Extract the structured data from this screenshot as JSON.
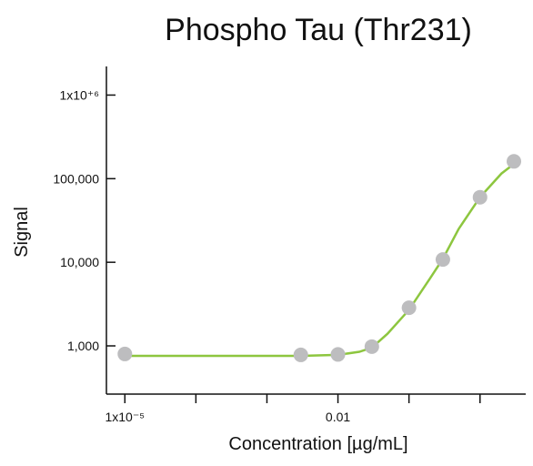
{
  "chart_data": {
    "type": "scatter",
    "title": "Phospho Tau (Thr231)",
    "xlabel": "Concentration [µg/mL]",
    "ylabel": "Signal",
    "xscale": "log",
    "yscale": "log",
    "xlim": [
      5.5e-06,
      4.4
    ],
    "ylim": [
      265,
      2200000
    ],
    "xticks": [
      {
        "value": 1e-05,
        "label": "1x10⁻⁵"
      },
      0.01
    ],
    "x_minor_ticks": [
      0.0001,
      0.001,
      0.1,
      1
    ],
    "yticks": [
      {
        "value": 1000,
        "label": "1,000"
      },
      {
        "value": 10000,
        "label": "10,000"
      },
      {
        "value": 100000,
        "label": "100,000"
      },
      {
        "value": 1000000,
        "label": "1x10⁺⁶"
      }
    ],
    "points": {
      "color": "#bdbdbf",
      "x": [
        1e-05,
        0.003,
        0.01,
        0.03,
        0.1,
        0.3,
        1,
        3
      ],
      "y": [
        800,
        780,
        790,
        980,
        2860,
        10800,
        60000,
        161000
      ]
    },
    "fit": {
      "color": "#8dc63f",
      "x": [
        1e-05,
        0.0001,
        0.001,
        0.003,
        0.01,
        0.02,
        0.03,
        0.05,
        0.1,
        0.2,
        0.3,
        0.5,
        1,
        2,
        3,
        3.5
      ],
      "y": [
        760,
        760,
        760,
        760,
        780,
        850,
        950,
        1400,
        2700,
        6500,
        11000,
        25000,
        60000,
        115000,
        150000,
        165000
      ]
    }
  }
}
